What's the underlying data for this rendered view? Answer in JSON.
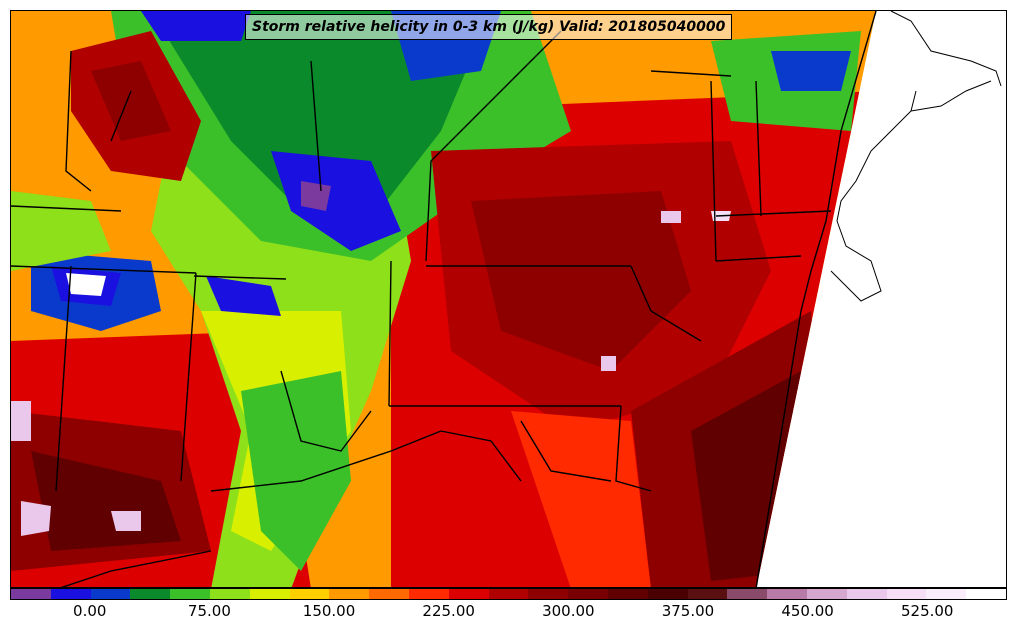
{
  "title": "Storm relative helicity in 0-3 km (J/kg) Valid: 201805040000",
  "colorbar": {
    "colors": [
      "#7a3a9e",
      "#1a10e0",
      "#0a3acc",
      "#0a8a2a",
      "#3cc02a",
      "#8ee01a",
      "#d8f000",
      "#ffd000",
      "#ff9a00",
      "#ff6a00",
      "#ff2a00",
      "#dd0000",
      "#b00000",
      "#8e0000",
      "#780000",
      "#600000",
      "#4a0000",
      "#5a1010",
      "#8a4a6a",
      "#b87aa6",
      "#d6a8d0",
      "#eac8ec",
      "#f6dff6",
      "#fbeefb",
      "#ffffff"
    ],
    "tick_labels": [
      "0.00",
      "75.00",
      "150.00",
      "225.00",
      "300.00",
      "375.00",
      "450.00",
      "525.00"
    ]
  },
  "map_colors": {
    "ocean": "#ffffff",
    "borders": "#000000"
  }
}
